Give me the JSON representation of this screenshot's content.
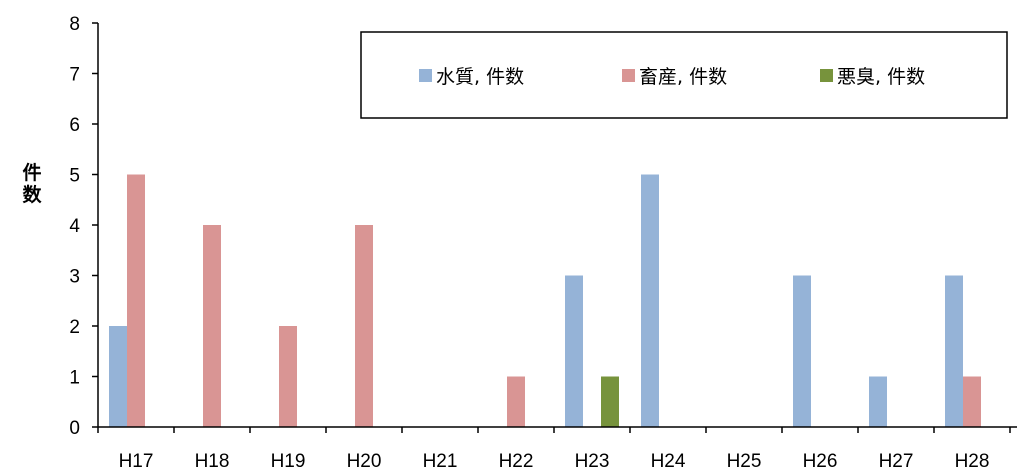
{
  "chart_data": {
    "type": "bar",
    "title": "",
    "xlabel": "",
    "ylabel": "件数",
    "ylim": [
      0,
      8
    ],
    "yticks": [
      0,
      1,
      2,
      3,
      4,
      5,
      6,
      7,
      8
    ],
    "grid": false,
    "legend_position": "top-right",
    "categories": [
      "H17",
      "H18",
      "H19",
      "H20",
      "H21",
      "H22",
      "H23",
      "H24",
      "H25",
      "H26",
      "H27",
      "H28"
    ],
    "series": [
      {
        "name": "水質, 件数",
        "color": "#95B3D7",
        "values": [
          2,
          0,
          0,
          0,
          0,
          0,
          3,
          5,
          0,
          3,
          1,
          3
        ]
      },
      {
        "name": "畜産, 件数",
        "color": "#D99594",
        "values": [
          5,
          4,
          2,
          4,
          0,
          1,
          0,
          0,
          0,
          0,
          0,
          1
        ]
      },
      {
        "name": "悪臭, 件数",
        "color": "#77933C",
        "values": [
          0,
          0,
          0,
          0,
          0,
          0,
          1,
          0,
          0,
          0,
          0,
          0
        ]
      }
    ]
  }
}
